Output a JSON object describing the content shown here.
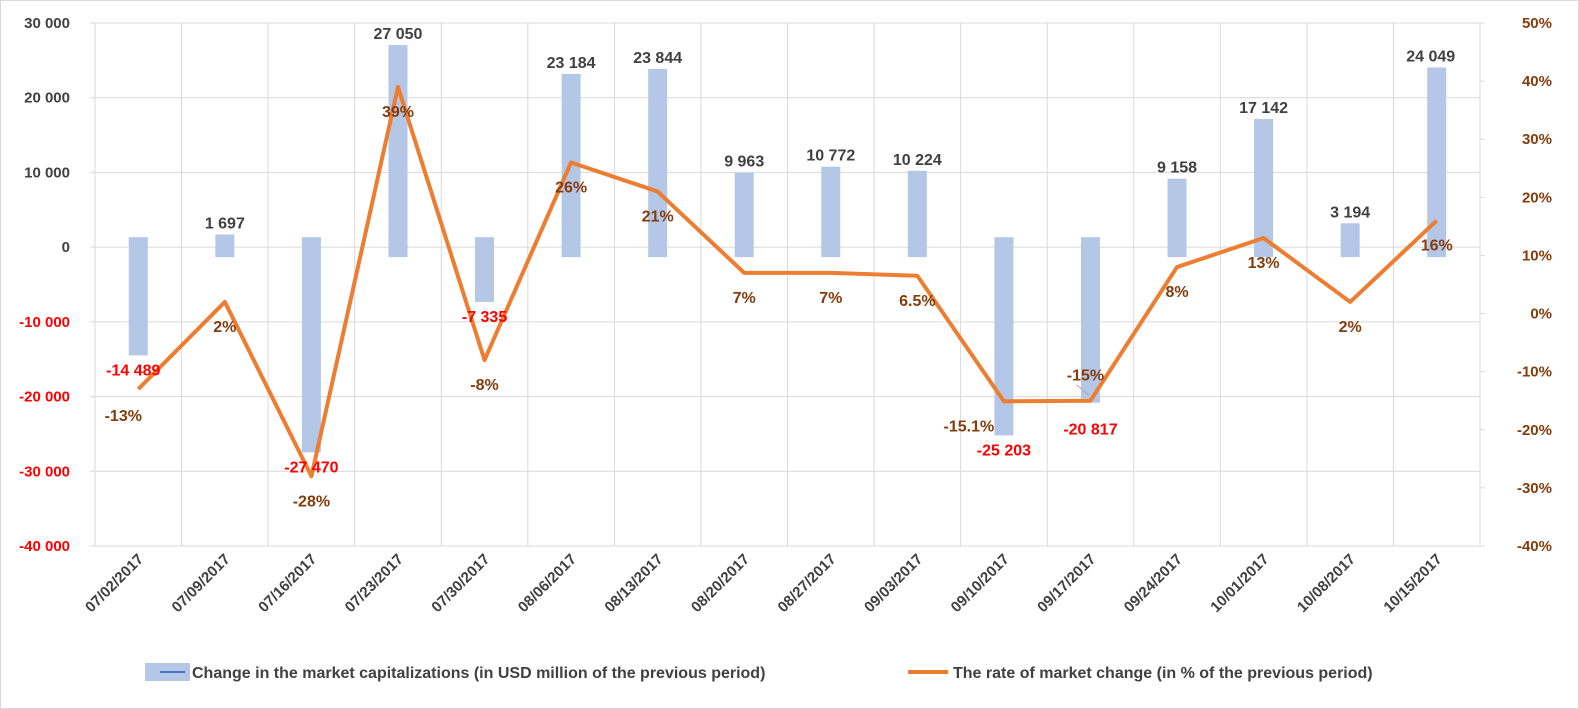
{
  "chart_data": {
    "type": "bar",
    "categories": [
      "07/02/2017",
      "07/09/2017",
      "07/16/2017",
      "07/23/2017",
      "07/30/2017",
      "08/06/2017",
      "08/13/2017",
      "08/20/2017",
      "08/27/2017",
      "09/03/2017",
      "09/10/2017",
      "09/17/2017",
      "09/24/2017",
      "10/01/2017",
      "10/08/2017",
      "10/15/2017"
    ],
    "series": [
      {
        "name": "Change in the market capitalizations  (in USD million of the previous period)",
        "type": "bar",
        "axis": "left",
        "values": [
          -14489,
          1697,
          -27470,
          27050,
          -7335,
          23184,
          23844,
          9963,
          10772,
          10224,
          -25203,
          -20817,
          9158,
          17142,
          3194,
          24049
        ],
        "labels": [
          "-14 489",
          "1 697",
          "-27 470",
          "27 050",
          "-7 335",
          "23 184",
          "23 844",
          "9 963",
          "10 772",
          "10 224",
          "-25 203",
          "-20 817",
          "9 158",
          "17 142",
          "3 194",
          "24 049"
        ],
        "color": "#b4c7e7"
      },
      {
        "name": "The rate of market change (in % of the previous period)",
        "type": "line",
        "axis": "right",
        "values": [
          -13,
          2,
          -28,
          39,
          -8,
          26,
          21,
          7,
          7,
          6.5,
          -15.1,
          -15,
          8,
          13,
          2,
          16
        ],
        "labels": [
          "-13%",
          "2%",
          "-28%",
          "39%",
          "-8%",
          "26%",
          "21%",
          "7%",
          "7%",
          "6.5%",
          "-15.1%",
          "-15%",
          "8%",
          "13%",
          "2%",
          "16%"
        ],
        "color": "#ed7d31"
      }
    ],
    "y_left": {
      "range": [
        -40000,
        30000
      ],
      "ticks": [
        30000,
        20000,
        10000,
        0,
        -10000,
        -20000,
        -30000,
        -40000
      ],
      "tick_labels": [
        "30 000",
        "20 000",
        "10 000",
        "0",
        "-10 000",
        "-20 000",
        "-30 000",
        "-40 000"
      ]
    },
    "y_right": {
      "range": [
        -40,
        50
      ],
      "ticks": [
        50,
        40,
        30,
        20,
        10,
        0,
        -10,
        -20,
        -30,
        -40
      ],
      "tick_labels": [
        "50%",
        "40%",
        "30%",
        "20%",
        "10%",
        "0%",
        "-10%",
        "-20%",
        "-30%",
        "-40%"
      ]
    },
    "colors": {
      "bar": "#b4c7e7",
      "line": "#ed7d31",
      "pct_label": "#843c0c",
      "positive_label": "#404040",
      "negative_label": "#ff0000",
      "left_tick": "#404040",
      "left_tick_negative": "#ff0000",
      "right_tick": "#843c0c",
      "grid": "#d9d9d9"
    },
    "grid": true,
    "legend_position": "bottom"
  }
}
